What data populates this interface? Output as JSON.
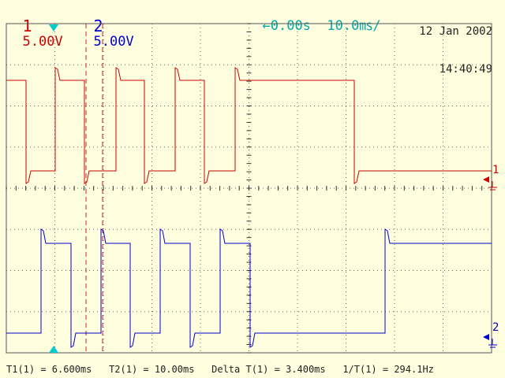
{
  "header": {
    "ch1_num": "1",
    "ch1_scale": "5.00V",
    "ch2_num": "2",
    "ch2_scale": "5.00V",
    "timebase_arrow": "←",
    "trigger_delay": "0.00s",
    "time_per_div": "10.0㎳/",
    "date": "12 Jan 2002",
    "time": "14:40:49"
  },
  "markers": {
    "ch1": "1",
    "ch2": "2"
  },
  "measurements": {
    "t1_label": "T1(1) = 6.600ms",
    "t2_label": "T2(1) = 10.00ms",
    "delta_label": "Delta T(1) = 3.400ms",
    "inv_label": "1/T(1) = 294.1Hz"
  },
  "colors": {
    "background": "#FFFFE0",
    "ch1": "#CC0000",
    "ch2": "#0000CC",
    "accent": "#00AAAA"
  }
}
